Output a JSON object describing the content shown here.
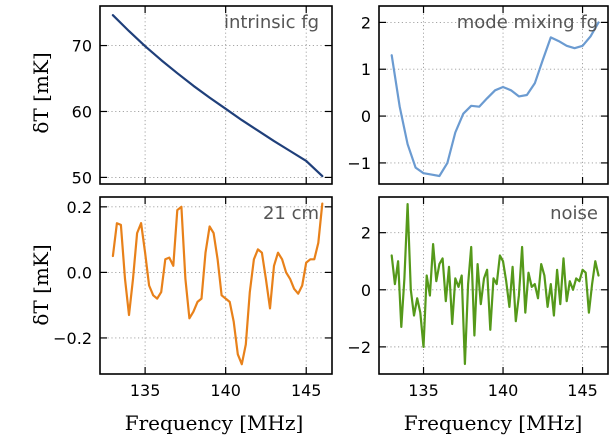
{
  "chart_data": [
    {
      "type": "line",
      "id": "intrinsic",
      "title": "intrinsic fg",
      "xlabel": "",
      "ylabel": "δT [mK]",
      "xlim": [
        132.2,
        146.6
      ],
      "ylim": [
        49,
        76
      ],
      "x_ticks": [
        135,
        140,
        145
      ],
      "y_ticks": [
        50,
        60,
        70
      ],
      "grid": true,
      "color": "#1f3f7a",
      "x": [
        133.0,
        134.0,
        135.0,
        136.0,
        137.0,
        138.0,
        139.0,
        140.0,
        141.0,
        142.0,
        143.0,
        144.0,
        145.0,
        146.0
      ],
      "y": [
        74.6,
        72.2,
        69.9,
        67.8,
        65.8,
        63.9,
        62.1,
        60.4,
        58.7,
        57.1,
        55.5,
        54.0,
        52.5,
        50.2
      ]
    },
    {
      "type": "line",
      "id": "mode_mixing",
      "title": "mode mixing fg",
      "xlabel": "",
      "ylabel": "",
      "xlim": [
        132.2,
        146.6
      ],
      "ylim": [
        -1.45,
        2.35
      ],
      "x_ticks": [
        135,
        140,
        145
      ],
      "y_ticks": [
        -1,
        0,
        1,
        2
      ],
      "grid": true,
      "color": "#6b9bd1",
      "x": [
        133.0,
        133.5,
        134.0,
        134.5,
        135.0,
        135.5,
        136.0,
        136.5,
        137.0,
        137.5,
        138.0,
        138.5,
        139.0,
        139.5,
        140.0,
        140.5,
        141.0,
        141.5,
        142.0,
        142.5,
        143.0,
        143.5,
        144.0,
        144.5,
        145.0,
        145.5,
        146.0
      ],
      "y": [
        1.3,
        0.2,
        -0.6,
        -1.1,
        -1.22,
        -1.25,
        -1.28,
        -1.0,
        -0.35,
        0.05,
        0.22,
        0.2,
        0.38,
        0.55,
        0.62,
        0.55,
        0.42,
        0.45,
        0.7,
        1.2,
        1.68,
        1.6,
        1.5,
        1.45,
        1.5,
        1.7,
        2.0
      ]
    },
    {
      "type": "line",
      "id": "signal_21cm",
      "title": "21 cm",
      "xlabel": "Frequency [MHz]",
      "ylabel": "δT [mK]",
      "xlim": [
        132.2,
        146.6
      ],
      "ylim": [
        -0.31,
        0.23
      ],
      "x_ticks": [
        135,
        140,
        145
      ],
      "y_ticks": [
        -0.2,
        0.0,
        0.2
      ],
      "grid": true,
      "color": "#e8811a",
      "x": [
        133.0,
        133.25,
        133.5,
        133.75,
        134.0,
        134.25,
        134.5,
        134.75,
        135.0,
        135.25,
        135.5,
        135.75,
        136.0,
        136.25,
        136.5,
        136.75,
        137.0,
        137.25,
        137.5,
        137.75,
        138.0,
        138.25,
        138.5,
        138.75,
        139.0,
        139.25,
        139.5,
        139.75,
        140.0,
        140.25,
        140.5,
        140.75,
        141.0,
        141.25,
        141.5,
        141.75,
        142.0,
        142.25,
        142.5,
        142.75,
        143.0,
        143.25,
        143.5,
        143.75,
        144.0,
        144.25,
        144.5,
        144.75,
        145.0,
        145.25,
        145.5,
        145.75,
        146.0
      ],
      "y": [
        0.05,
        0.15,
        0.145,
        -0.02,
        -0.13,
        -0.02,
        0.12,
        0.15,
        0.06,
        -0.04,
        -0.07,
        -0.08,
        -0.06,
        0.04,
        0.045,
        0.02,
        0.19,
        0.2,
        -0.02,
        -0.14,
        -0.12,
        -0.09,
        -0.08,
        0.06,
        0.14,
        0.12,
        0.04,
        -0.07,
        -0.08,
        -0.09,
        -0.15,
        -0.25,
        -0.28,
        -0.22,
        -0.06,
        0.04,
        0.07,
        0.06,
        -0.02,
        -0.11,
        0.02,
        0.06,
        0.04,
        0.0,
        -0.02,
        -0.05,
        -0.065,
        -0.04,
        0.03,
        0.04,
        0.04,
        0.09,
        0.21
      ]
    },
    {
      "type": "line",
      "id": "noise",
      "title": "noise",
      "xlabel": "Frequency [MHz]",
      "ylabel": "",
      "xlim": [
        132.2,
        146.6
      ],
      "ylim": [
        -2.95,
        3.25
      ],
      "x_ticks": [
        135,
        140,
        145
      ],
      "y_ticks": [
        -2,
        0,
        2
      ],
      "grid": true,
      "color": "#55991a",
      "x": [
        133.0,
        133.2,
        133.4,
        133.6,
        133.8,
        134.0,
        134.2,
        134.4,
        134.6,
        134.8,
        135.0,
        135.2,
        135.4,
        135.6,
        135.8,
        136.0,
        136.2,
        136.4,
        136.6,
        136.8,
        137.0,
        137.2,
        137.4,
        137.6,
        137.8,
        138.0,
        138.2,
        138.4,
        138.6,
        138.8,
        139.0,
        139.2,
        139.4,
        139.6,
        139.8,
        140.0,
        140.2,
        140.4,
        140.6,
        140.8,
        141.0,
        141.2,
        141.4,
        141.6,
        141.8,
        142.0,
        142.2,
        142.4,
        142.6,
        142.8,
        143.0,
        143.2,
        143.4,
        143.6,
        143.8,
        144.0,
        144.2,
        144.4,
        144.6,
        144.8,
        145.0,
        145.2,
        145.4,
        145.6,
        145.8,
        146.0
      ],
      "y": [
        1.2,
        0.2,
        1.0,
        -1.3,
        0.4,
        3.0,
        0.0,
        -0.9,
        -0.3,
        -0.8,
        -2.0,
        0.5,
        -0.2,
        1.6,
        0.3,
        0.9,
        1.1,
        -0.4,
        0.8,
        -1.2,
        0.4,
        0.1,
        0.5,
        -2.6,
        0.2,
        1.5,
        -1.6,
        0.9,
        -0.5,
        0.4,
        0.7,
        -1.4,
        0.4,
        0.2,
        1.2,
        1.0,
        0.3,
        -0.6,
        0.8,
        -1.1,
        -0.2,
        1.5,
        -0.8,
        0.6,
        0.1,
        0.2,
        -0.3,
        0.9,
        0.5,
        -0.6,
        0.2,
        -0.9,
        0.7,
        -0.5,
        1.1,
        -0.4,
        0.3,
        0.0,
        0.4,
        0.3,
        0.7,
        0.6,
        -0.8,
        0.2,
        1.0,
        0.5
      ]
    }
  ]
}
